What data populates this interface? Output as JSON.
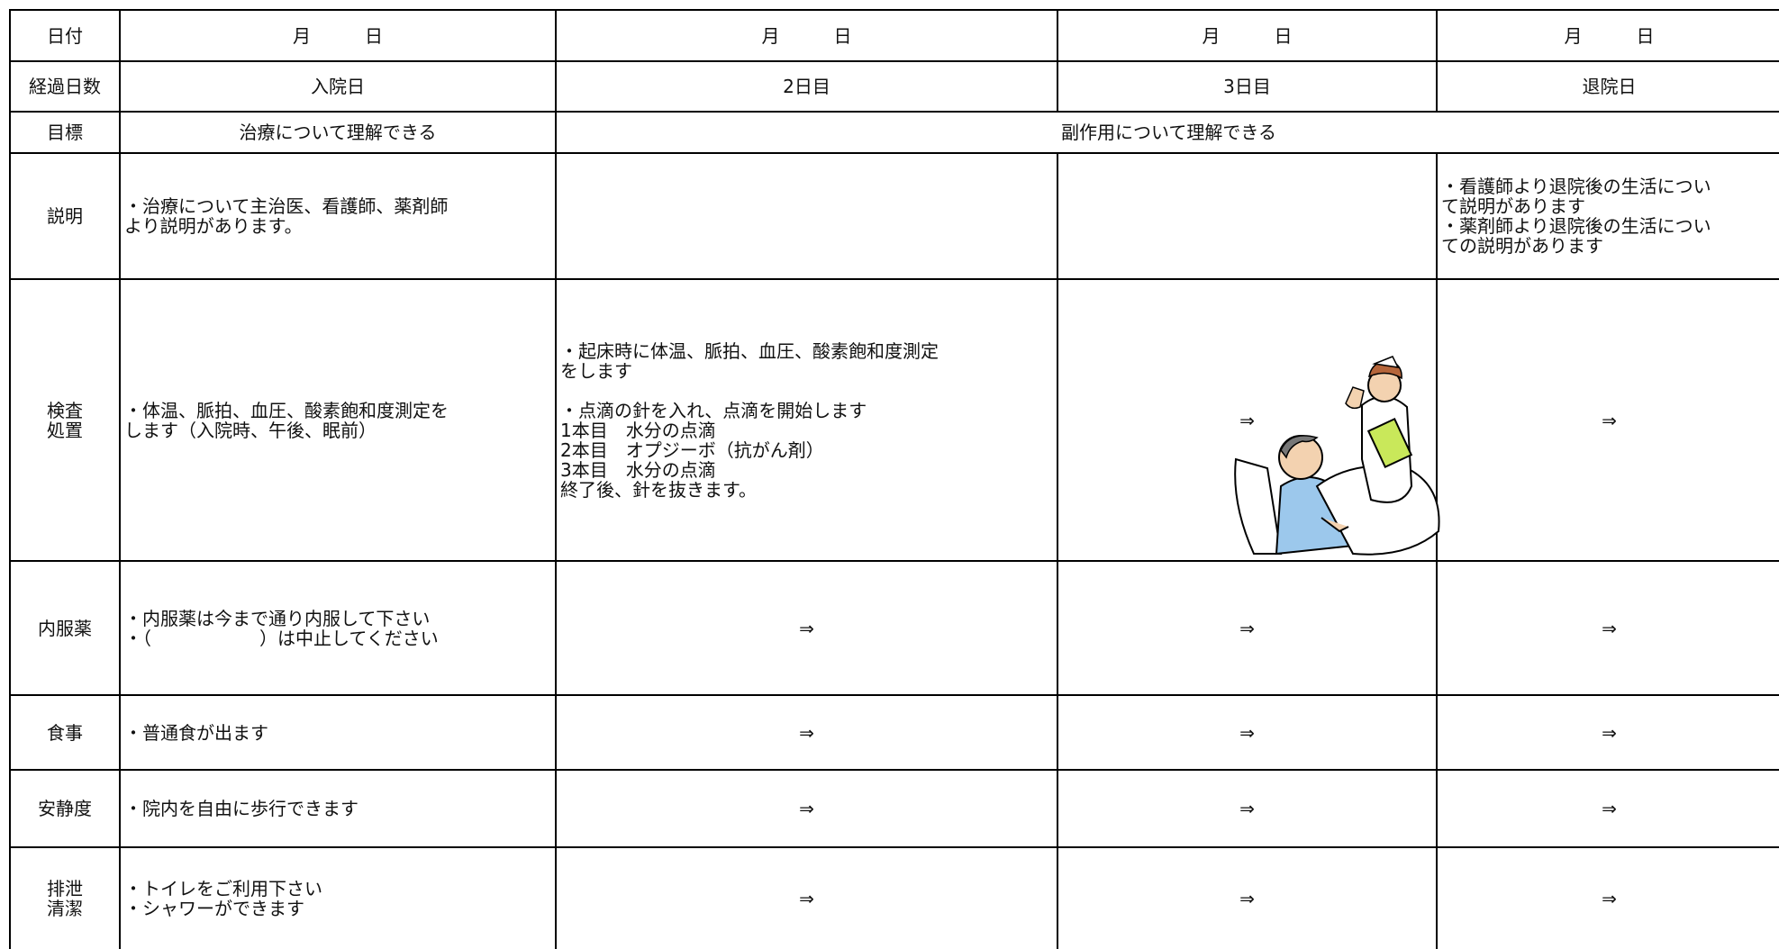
{
  "table": {
    "rows": [
      {
        "label": [
          "日付"
        ],
        "cells": [
          "月　　　日",
          "月　　　日",
          "月　　　日",
          "月　　　日"
        ]
      },
      {
        "label": [
          "経過日数"
        ],
        "cells": [
          "入院日",
          "2日目",
          "3日目",
          "退院日"
        ]
      },
      {
        "label": [
          "目標"
        ],
        "cells": [
          "治療について理解できる",
          "副作用について理解できる"
        ]
      },
      {
        "label": [
          "説明"
        ],
        "cells": [
          [
            "・治療について主治医、看護師、薬剤師",
            "より説明があります。"
          ],
          [],
          [],
          [
            "・看護師より退院後の生活につい",
            "て説明があります",
            "・薬剤師より退院後の生活につい",
            "ての説明があります"
          ]
        ]
      },
      {
        "label": [
          "検査",
          "処置"
        ],
        "cells": [
          [
            "・体温、脈拍、血圧、酸素飽和度測定を",
            "します（入院時、午後、眠前）"
          ],
          [
            [
              "・起床時に体温、脈拍、血圧、酸素飽和度測定",
              "をします"
            ],
            [
              "・点滴の針を入れ、点滴を開始します",
              "1本目　水分の点滴",
              "2本目　オプジーボ（抗がん剤）",
              "3本目　水分の点滴",
              "終了後、針を抜きます。"
            ]
          ],
          "⇒",
          "⇒"
        ]
      },
      {
        "label": [
          "内服薬"
        ],
        "cells": [
          [
            "・内服薬は今まで通り内服して下さい",
            "・（　　　　　　）は中止してください"
          ],
          "⇒",
          "⇒",
          "⇒"
        ]
      },
      {
        "label": [
          "食事"
        ],
        "cells": [
          [
            "・普通食が出ます"
          ],
          "⇒",
          "⇒",
          "⇒"
        ]
      },
      {
        "label": [
          "安静度"
        ],
        "cells": [
          [
            "・院内を自由に歩行できます"
          ],
          "⇒",
          "⇒",
          "⇒"
        ]
      },
      {
        "label": [
          "排泄",
          "清潔"
        ],
        "cells": [
          [
            "・トイレをご利用下さい",
            "・シャワーができます"
          ],
          "⇒",
          "⇒",
          "⇒"
        ]
      }
    ]
  }
}
